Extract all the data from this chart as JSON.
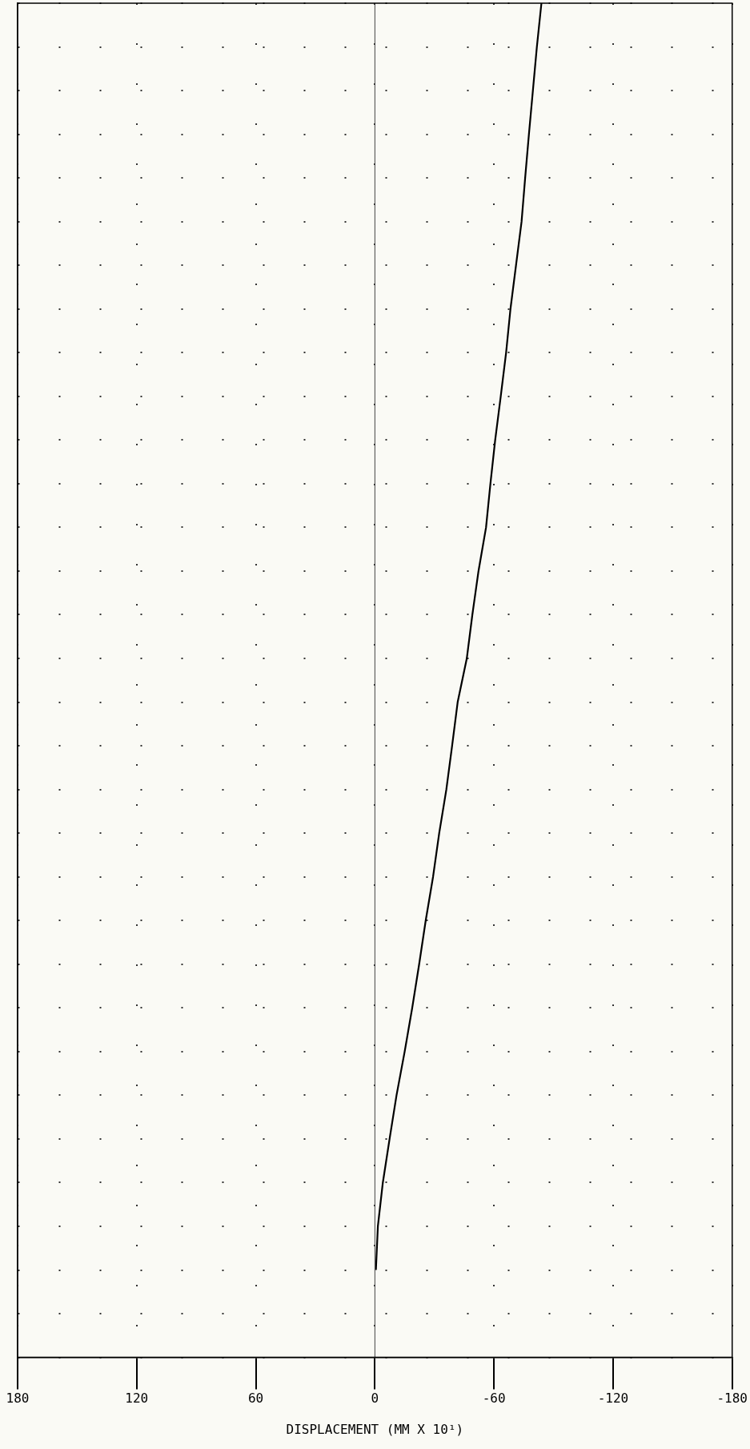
{
  "chart_data": {
    "type": "line",
    "orientation": "horizontal",
    "xlabel": "DISPLACEMENT (MM X 10¹)",
    "categories": [
      null,
      null,
      null,
      null,
      null,
      null,
      null,
      null,
      null,
      null,
      null,
      null,
      null,
      null,
      null,
      null,
      null,
      null,
      null,
      null,
      null,
      null,
      null,
      null,
      null,
      null,
      null,
      null,
      null,
      null,
      null,
      null
    ],
    "series": [
      {
        "color": "#000000",
        "values": [
          -83.9,
          -81.6,
          -79.6,
          -77.6,
          -75.7,
          -73.9,
          -71.1,
          -68.3,
          -66.1,
          -63.4,
          -60.6,
          -58.2,
          -56,
          -52.2,
          -49.1,
          -46.3,
          -41.7,
          -38.9,
          -36,
          -32.4,
          -29.3,
          -25.6,
          -22.3,
          -18.8,
          -15,
          -10.9,
          -7.4,
          -4,
          -1.5,
          -0.5,
          null,
          null
        ]
      }
    ],
    "xlim": [
      180,
      -180
    ],
    "xticks": [
      180,
      120,
      60,
      0,
      -60,
      -120,
      -180
    ],
    "ref_lines": [
      {
        "axis": "x",
        "value": 0,
        "color": "#444444"
      }
    ],
    "grid": true,
    "tick_labels": "x",
    "marker": "none",
    "line_style": "solid",
    "legend": false
  }
}
